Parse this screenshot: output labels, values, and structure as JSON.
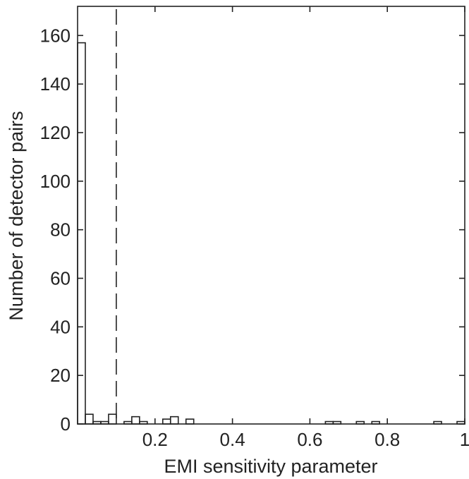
{
  "chart_data": {
    "type": "histogram",
    "xlabel": "EMI sensitivity parameter",
    "ylabel": "Number of detector pairs",
    "xlim": [
      0,
      1
    ],
    "ylim": [
      0,
      172
    ],
    "x_ticks": [
      0.2,
      0.4,
      0.6,
      0.8,
      1
    ],
    "x_tick_labels": [
      "0.2",
      "0.4",
      "0.6",
      "0.8",
      "1"
    ],
    "y_ticks": [
      0,
      20,
      40,
      60,
      80,
      100,
      120,
      140,
      160
    ],
    "y_tick_labels": [
      "0",
      "20",
      "40",
      "60",
      "80",
      "100",
      "120",
      "140",
      "160"
    ],
    "bin_width": 0.02,
    "bins": [
      {
        "x0": 0.0,
        "x1": 0.02,
        "count": 157
      },
      {
        "x0": 0.02,
        "x1": 0.04,
        "count": 4
      },
      {
        "x0": 0.04,
        "x1": 0.06,
        "count": 1
      },
      {
        "x0": 0.06,
        "x1": 0.08,
        "count": 1
      },
      {
        "x0": 0.08,
        "x1": 0.1,
        "count": 4
      },
      {
        "x0": 0.1,
        "x1": 0.12,
        "count": 0
      },
      {
        "x0": 0.12,
        "x1": 0.14,
        "count": 1
      },
      {
        "x0": 0.14,
        "x1": 0.16,
        "count": 3
      },
      {
        "x0": 0.16,
        "x1": 0.18,
        "count": 1
      },
      {
        "x0": 0.18,
        "x1": 0.2,
        "count": 0
      },
      {
        "x0": 0.2,
        "x1": 0.22,
        "count": 0
      },
      {
        "x0": 0.22,
        "x1": 0.24,
        "count": 2
      },
      {
        "x0": 0.24,
        "x1": 0.26,
        "count": 3
      },
      {
        "x0": 0.26,
        "x1": 0.28,
        "count": 0
      },
      {
        "x0": 0.28,
        "x1": 0.3,
        "count": 2
      },
      {
        "x0": 0.64,
        "x1": 0.66,
        "count": 1
      },
      {
        "x0": 0.66,
        "x1": 0.68,
        "count": 1
      },
      {
        "x0": 0.72,
        "x1": 0.74,
        "count": 1
      },
      {
        "x0": 0.76,
        "x1": 0.78,
        "count": 1
      },
      {
        "x0": 0.92,
        "x1": 0.94,
        "count": 1
      },
      {
        "x0": 0.98,
        "x1": 1.0,
        "count": 1
      }
    ],
    "threshold_line": {
      "x": 0.1,
      "style": "dashed"
    },
    "grid": false,
    "line_color": "#222222"
  }
}
